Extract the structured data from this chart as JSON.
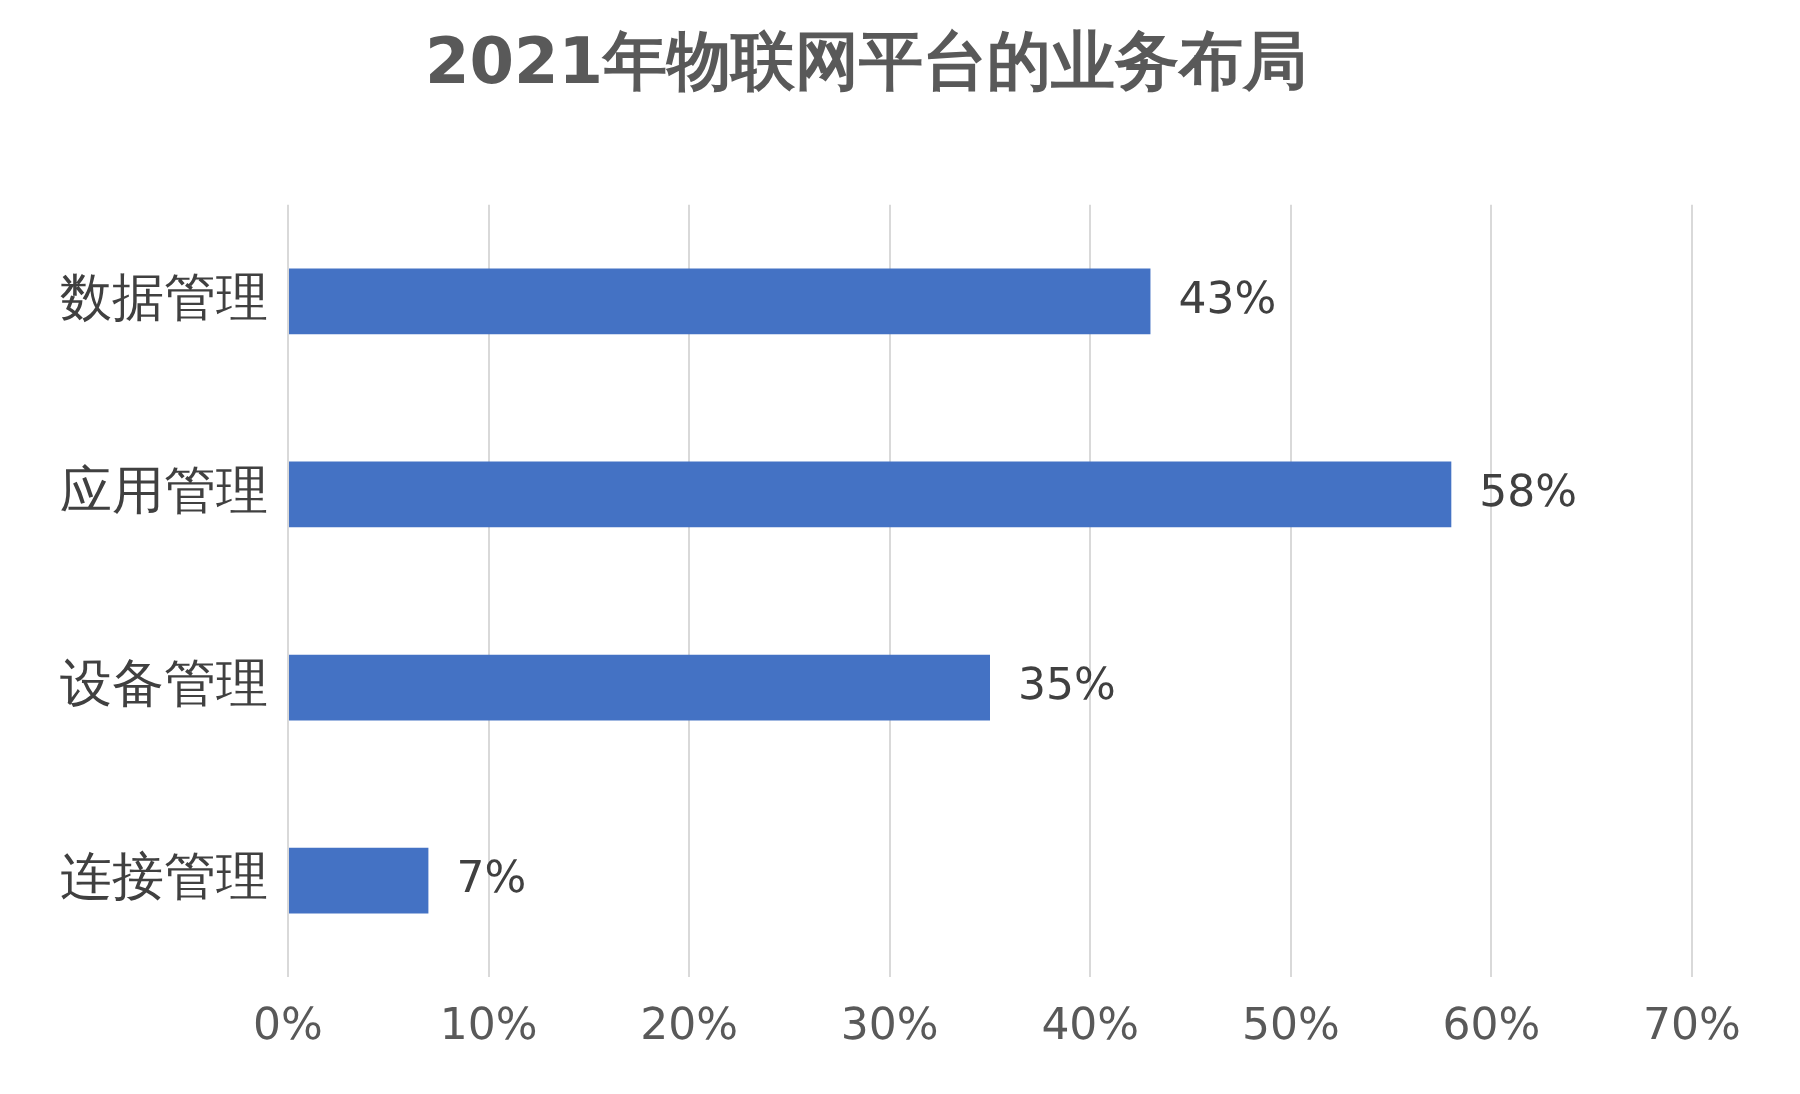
{
  "chart_data": {
    "type": "bar",
    "title": "2021年物联网平台的业务布局",
    "orientation": "horizontal",
    "categories": [
      "数据管理",
      "应用管理",
      "设备管理",
      "连接管理"
    ],
    "values": [
      43,
      58,
      35,
      7
    ],
    "value_labels": [
      "43%",
      "58%",
      "35%",
      "7%"
    ],
    "color": "#4472c4",
    "xlim": [
      0,
      70
    ],
    "xticks": [
      {
        "value": 0,
        "label": "0%"
      },
      {
        "value": 10,
        "label": "10%"
      },
      {
        "value": 20,
        "label": "20%"
      },
      {
        "value": 30,
        "label": "30%"
      },
      {
        "value": 40,
        "label": "40%"
      },
      {
        "value": 50,
        "label": "50%"
      },
      {
        "value": 60,
        "label": "60%"
      },
      {
        "value": 70,
        "label": "70%"
      }
    ],
    "grid": "x",
    "legend": false
  }
}
